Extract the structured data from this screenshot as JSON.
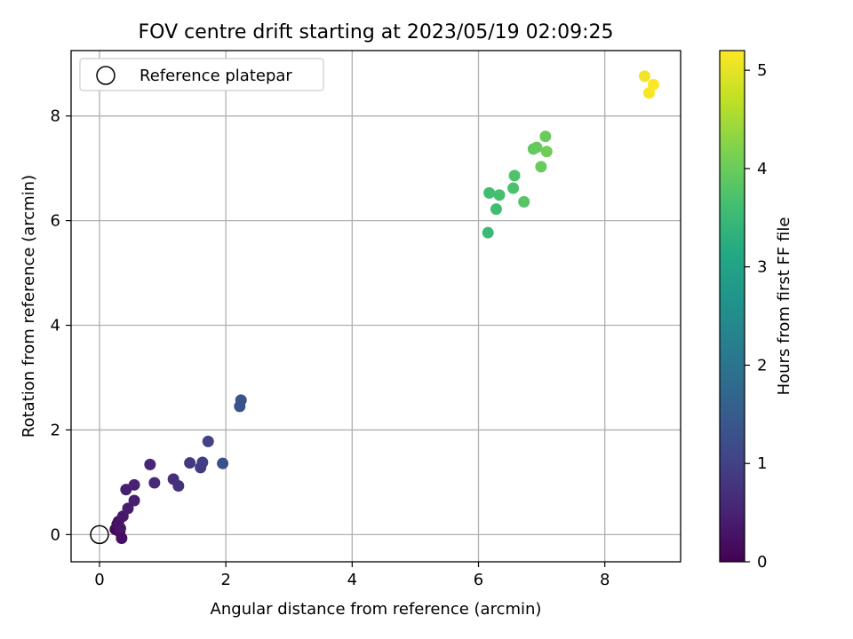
{
  "chart_data": {
    "type": "scatter",
    "title": "FOV centre drift starting at 2023/05/19 02:09:25",
    "xlabel": "Angular distance from reference (arcmin)",
    "ylabel": "Rotation from reference (arcmin)",
    "xlim": [
      -0.45,
      9.2
    ],
    "ylim": [
      -0.52,
      9.25
    ],
    "xticks": [
      0,
      2,
      4,
      6,
      8
    ],
    "yticks": [
      0,
      2,
      4,
      6,
      8
    ],
    "grid": true,
    "legend": {
      "position": "top-left",
      "label": "Reference platepar"
    },
    "reference_point": {
      "x": 0,
      "y": 0
    },
    "colorbar": {
      "label": "Hours from first FF file",
      "min": 0,
      "max": 5.2,
      "ticks": [
        0,
        1,
        2,
        3,
        4,
        5
      ],
      "colormap": "viridis"
    },
    "points": [
      {
        "x": 0.25,
        "y": 0.1,
        "h": 0.1
      },
      {
        "x": 0.28,
        "y": 0.2,
        "h": 0.2
      },
      {
        "x": 0.3,
        "y": 0.25,
        "h": 0.25
      },
      {
        "x": 0.32,
        "y": 0.05,
        "h": 0.15
      },
      {
        "x": 0.33,
        "y": 0.12,
        "h": 0.3
      },
      {
        "x": 0.35,
        "y": -0.07,
        "h": 0.2
      },
      {
        "x": 0.37,
        "y": 0.35,
        "h": 0.35
      },
      {
        "x": 0.42,
        "y": 0.86,
        "h": 0.45
      },
      {
        "x": 0.45,
        "y": 0.5,
        "h": 0.4
      },
      {
        "x": 0.55,
        "y": 0.95,
        "h": 0.5
      },
      {
        "x": 0.55,
        "y": 0.65,
        "h": 0.45
      },
      {
        "x": 0.8,
        "y": 1.34,
        "h": 0.55
      },
      {
        "x": 0.87,
        "y": 0.99,
        "h": 0.6
      },
      {
        "x": 1.17,
        "y": 1.06,
        "h": 0.7
      },
      {
        "x": 1.25,
        "y": 0.93,
        "h": 0.75
      },
      {
        "x": 1.43,
        "y": 1.37,
        "h": 0.85
      },
      {
        "x": 1.6,
        "y": 1.28,
        "h": 0.9
      },
      {
        "x": 1.63,
        "y": 1.38,
        "h": 0.95
      },
      {
        "x": 1.72,
        "y": 1.78,
        "h": 1.0
      },
      {
        "x": 1.95,
        "y": 1.36,
        "h": 1.25
      },
      {
        "x": 2.22,
        "y": 2.45,
        "h": 1.3
      },
      {
        "x": 2.24,
        "y": 2.57,
        "h": 1.35
      },
      {
        "x": 6.15,
        "y": 5.77,
        "h": 3.5
      },
      {
        "x": 6.17,
        "y": 6.53,
        "h": 3.6
      },
      {
        "x": 6.28,
        "y": 6.22,
        "h": 3.6
      },
      {
        "x": 6.33,
        "y": 6.49,
        "h": 3.65
      },
      {
        "x": 6.55,
        "y": 6.62,
        "h": 3.7
      },
      {
        "x": 6.57,
        "y": 6.86,
        "h": 3.75
      },
      {
        "x": 6.72,
        "y": 6.36,
        "h": 3.8
      },
      {
        "x": 6.87,
        "y": 7.37,
        "h": 3.9
      },
      {
        "x": 6.92,
        "y": 7.4,
        "h": 3.95
      },
      {
        "x": 6.99,
        "y": 7.03,
        "h": 4.0
      },
      {
        "x": 7.06,
        "y": 7.61,
        "h": 4.0
      },
      {
        "x": 7.08,
        "y": 7.32,
        "h": 4.05
      },
      {
        "x": 8.63,
        "y": 8.76,
        "h": 5.1
      },
      {
        "x": 8.7,
        "y": 8.44,
        "h": 5.15
      },
      {
        "x": 8.77,
        "y": 8.6,
        "h": 5.2
      }
    ]
  }
}
